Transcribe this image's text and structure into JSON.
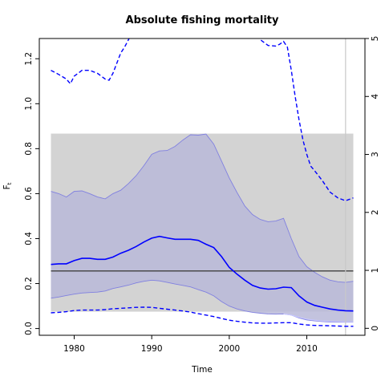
{
  "chart_data": {
    "type": "line",
    "title": "Absolute fishing mortality",
    "xlabel": "Time",
    "ylabel": "F",
    "ylabel_sub": "t",
    "xlim": [
      1975.5,
      2017.5
    ],
    "ylim": [
      -0.03,
      1.29
    ],
    "xticks": [
      1980,
      1990,
      2000,
      2010
    ],
    "yticks": [
      0.0,
      0.2,
      0.4,
      0.6,
      0.8,
      1.0,
      1.2
    ],
    "right_axis": {
      "ylim": [
        -0.12,
        5.0
      ],
      "ticks": [
        0,
        1,
        2,
        3,
        4,
        5
      ]
    },
    "grey_box": {
      "x": [
        1977,
        2016
      ],
      "y": [
        0.075,
        0.867
      ]
    },
    "hline": {
      "y": 0.256,
      "x": [
        1977,
        2016
      ]
    },
    "vline": {
      "x": 2015
    },
    "series": [
      {
        "role": "estimate",
        "x": [
          1977,
          1978,
          1979,
          1980,
          1981,
          1982,
          1983,
          1984,
          1985,
          1986,
          1987,
          1988,
          1989,
          1990,
          1991,
          1992,
          1993,
          1994,
          1995,
          1996,
          1997,
          1998,
          1999,
          2000,
          2001,
          2002,
          2003,
          2004,
          2005,
          2006,
          2007,
          2008,
          2009,
          2010,
          2011,
          2012,
          2013,
          2014,
          2015,
          2016
        ],
        "y": [
          0.285,
          0.288,
          0.288,
          0.302,
          0.312,
          0.312,
          0.308,
          0.308,
          0.318,
          0.335,
          0.348,
          0.365,
          0.385,
          0.402,
          0.41,
          0.403,
          0.397,
          0.397,
          0.397,
          0.392,
          0.375,
          0.36,
          0.32,
          0.272,
          0.242,
          0.215,
          0.192,
          0.18,
          0.175,
          0.177,
          0.184,
          0.182,
          0.145,
          0.118,
          0.103,
          0.095,
          0.087,
          0.082,
          0.079,
          0.078
        ]
      },
      {
        "role": "ci-upper",
        "x": [
          1977,
          1978,
          1979,
          1980,
          1981,
          1982,
          1983,
          1984,
          1985,
          1986,
          1987,
          1988,
          1989,
          1990,
          1991,
          1992,
          1993,
          1994,
          1995,
          1996,
          1997,
          1998,
          1999,
          2000,
          2001,
          2002,
          2003,
          2004,
          2005,
          2006,
          2007,
          2008,
          2009,
          2010,
          2011,
          2012,
          2013,
          2014,
          2015,
          2016
        ],
        "y": [
          0.61,
          0.6,
          0.585,
          0.61,
          0.612,
          0.6,
          0.585,
          0.577,
          0.6,
          0.615,
          0.645,
          0.68,
          0.725,
          0.775,
          0.79,
          0.792,
          0.81,
          0.838,
          0.862,
          0.86,
          0.865,
          0.82,
          0.745,
          0.67,
          0.605,
          0.545,
          0.507,
          0.485,
          0.475,
          0.478,
          0.49,
          0.4,
          0.32,
          0.275,
          0.25,
          0.23,
          0.215,
          0.208,
          0.205,
          0.21
        ]
      },
      {
        "role": "ci-lower",
        "x": [
          1977,
          1978,
          1979,
          1980,
          1981,
          1982,
          1983,
          1984,
          1985,
          1986,
          1987,
          1988,
          1989,
          1990,
          1991,
          1992,
          1993,
          1994,
          1995,
          1996,
          1997,
          1998,
          1999,
          2000,
          2001,
          2002,
          2003,
          2004,
          2005,
          2006,
          2007,
          2008,
          2009,
          2010,
          2011,
          2012,
          2013,
          2014,
          2015,
          2016
        ],
        "y": [
          0.135,
          0.14,
          0.147,
          0.153,
          0.158,
          0.16,
          0.162,
          0.167,
          0.178,
          0.185,
          0.193,
          0.203,
          0.21,
          0.215,
          0.212,
          0.205,
          0.198,
          0.192,
          0.185,
          0.173,
          0.162,
          0.145,
          0.12,
          0.1,
          0.087,
          0.078,
          0.072,
          0.068,
          0.065,
          0.064,
          0.065,
          0.06,
          0.047,
          0.038,
          0.034,
          0.031,
          0.029,
          0.028,
          0.028,
          0.028
        ]
      },
      {
        "role": "dashed-upper-right-axis",
        "x": [
          1977,
          1978,
          1979,
          1979.5,
          1980,
          1981,
          1982,
          1983,
          1984,
          1984.5,
          1985,
          1986,
          1986.5,
          1987,
          1987.3
        ],
        "y": [
          4.45,
          4.38,
          4.3,
          4.22,
          4.35,
          4.45,
          4.45,
          4.4,
          4.3,
          4.28,
          4.4,
          4.75,
          4.85,
          4.98,
          5.05
        ]
      },
      {
        "role": "dashed-upper-right-axis",
        "x": [
          2003.5,
          2004,
          2005,
          2006,
          2006.5,
          2007,
          2007.5,
          2008,
          2008.5,
          2009,
          2009.5,
          2010,
          2010.5,
          2011,
          2012,
          2013,
          2014,
          2015,
          2016
        ],
        "y": [
          5.05,
          4.98,
          4.88,
          4.87,
          4.9,
          4.95,
          4.85,
          4.45,
          4.0,
          3.6,
          3.25,
          3.0,
          2.8,
          2.72,
          2.55,
          2.35,
          2.25,
          2.2,
          2.25
        ]
      },
      {
        "role": "dashed-lower",
        "x": [
          1977,
          1978,
          1979,
          1980,
          1981,
          1982,
          1983,
          1984,
          1985,
          1986,
          1987,
          1988,
          1989,
          1990,
          1991,
          1992,
          1993,
          1994,
          1995,
          1996,
          1997,
          1998,
          1999,
          2000,
          2001,
          2002,
          2003,
          2004,
          2005,
          2006,
          2007,
          2008,
          2009,
          2010,
          2011,
          2012,
          2013,
          2014,
          2015,
          2016
        ],
        "y": [
          0.07,
          0.072,
          0.075,
          0.08,
          0.082,
          0.082,
          0.082,
          0.084,
          0.088,
          0.09,
          0.092,
          0.094,
          0.095,
          0.094,
          0.09,
          0.086,
          0.082,
          0.078,
          0.073,
          0.066,
          0.06,
          0.053,
          0.045,
          0.037,
          0.032,
          0.028,
          0.025,
          0.024,
          0.024,
          0.025,
          0.026,
          0.026,
          0.02,
          0.016,
          0.014,
          0.013,
          0.012,
          0.011,
          0.01,
          0.01
        ]
      },
      {
        "role": "faint-line",
        "x": [
          2007,
          2008,
          2009,
          2010,
          2011,
          2012,
          2013,
          2014,
          2015,
          2016
        ],
        "y": [
          0.065,
          0.06,
          0.05,
          0.042,
          0.037,
          0.034,
          0.032,
          0.031,
          0.03,
          0.03
        ]
      }
    ],
    "colors": {
      "estimate": "#0000ff",
      "ci_fill": "#b8b8d8",
      "ci_border": "#8080e0",
      "grey_box": "#d3d3d3",
      "hline": "#404040",
      "vline": "#c8c8c8",
      "faint_line": "#c8c8ff"
    },
    "grid": false
  }
}
